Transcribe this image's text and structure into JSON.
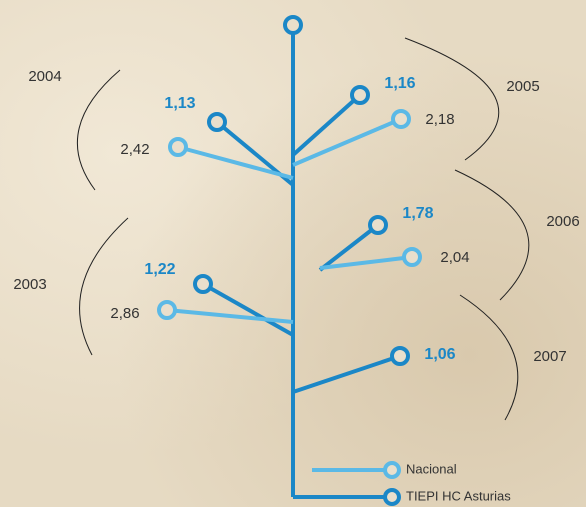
{
  "chart_data": {
    "type": "tree",
    "categories": [
      "2003",
      "2004",
      "2005",
      "2006",
      "2007"
    ],
    "series": [
      {
        "name": "TIEPI HC Asturias",
        "color": "#1b87c7",
        "values": [
          1.22,
          1.13,
          1.16,
          1.78,
          1.06
        ],
        "value_labels": [
          "1,22",
          "1,13",
          "1,16",
          "1,78",
          "1,06"
        ]
      },
      {
        "name": "Nacional",
        "color": "#5bb9e6",
        "values": [
          2.86,
          2.42,
          2.18,
          2.04,
          null
        ],
        "value_labels": [
          "2,86",
          "2,42",
          "2,18",
          "2,04",
          null
        ]
      }
    ]
  }
}
